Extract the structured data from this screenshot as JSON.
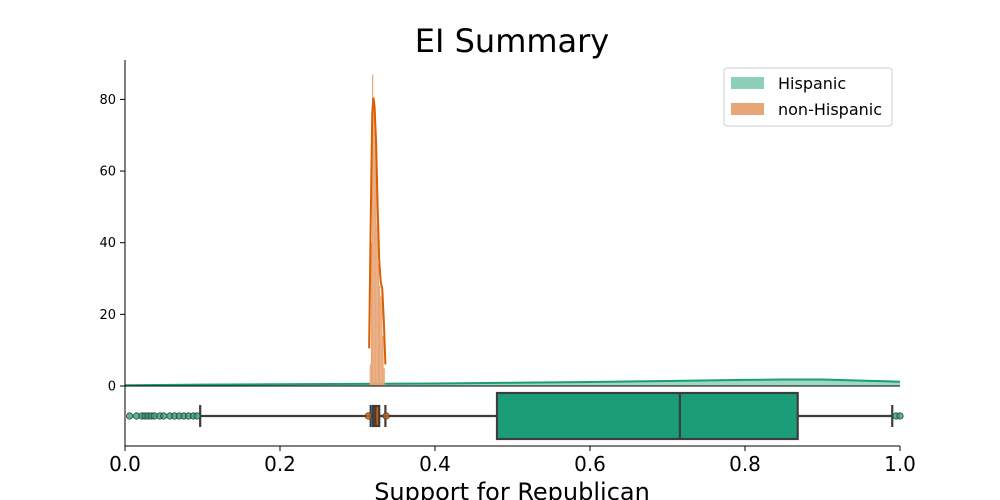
{
  "chart_data": {
    "type": "area",
    "title": "EI Summary",
    "xlabel": "Support for Republican",
    "ylabel": "",
    "xlim": [
      0.0,
      1.0
    ],
    "ylim": [
      0,
      91
    ],
    "density_yticks": [
      0,
      20,
      40,
      60,
      80
    ],
    "xticks": [
      "0.0",
      "0.2",
      "0.4",
      "0.6",
      "0.8",
      "1.0"
    ],
    "legend": {
      "placement": "top-right",
      "entries": [
        "Hispanic",
        "non-Hispanic"
      ]
    },
    "colors": {
      "Hispanic": "#1b9e77",
      "Hispanic_fill": "#8dd0b7",
      "non-Hispanic": "#d95f02",
      "non-Hispanic_fill": "#e8a678",
      "box_edge": "#3d3d3d"
    },
    "series": [
      {
        "name": "Hispanic",
        "kde": {
          "x": [
            0.0,
            0.1,
            0.2,
            0.3,
            0.4,
            0.5,
            0.6,
            0.7,
            0.8,
            0.85,
            0.9,
            0.95,
            1.0
          ],
          "y": [
            0.2,
            0.4,
            0.5,
            0.6,
            0.7,
            0.9,
            1.1,
            1.4,
            1.7,
            1.8,
            1.8,
            1.5,
            1.2
          ]
        },
        "box": {
          "whisker_low": 0.097,
          "q1": 0.48,
          "median": 0.716,
          "q3": 0.868,
          "whisker_high": 0.99,
          "outliers": [
            0.006,
            0.015,
            0.022,
            0.026,
            0.03,
            0.034,
            0.038,
            0.045,
            0.05,
            0.058,
            0.064,
            0.07,
            0.076,
            0.082,
            0.088,
            0.093,
            0.995,
            1.0
          ]
        }
      },
      {
        "name": "non-Hispanic",
        "kde": {
          "x": [
            0.315,
            0.317,
            0.319,
            0.3205,
            0.322,
            0.324,
            0.326,
            0.328,
            0.33,
            0.332,
            0.334,
            0.336
          ],
          "y": [
            10.5,
            45,
            76,
            80.5,
            78,
            68,
            50,
            35,
            29,
            27,
            18,
            6
          ]
        },
        "histogram": {
          "x": [
            0.3165,
            0.318,
            0.3195,
            0.321,
            0.3225,
            0.324,
            0.3255,
            0.327,
            0.3285,
            0.33,
            0.3315,
            0.333,
            0.3345
          ],
          "y": [
            6,
            40,
            87,
            78,
            72,
            62,
            45,
            34,
            28,
            25,
            27,
            14,
            5
          ]
        },
        "box": {
          "whisker_low": 0.317,
          "q1": 0.32,
          "median": 0.323,
          "q3": 0.328,
          "whisker_high": 0.336,
          "outliers": [
            0.314,
            0.337
          ]
        }
      }
    ]
  }
}
